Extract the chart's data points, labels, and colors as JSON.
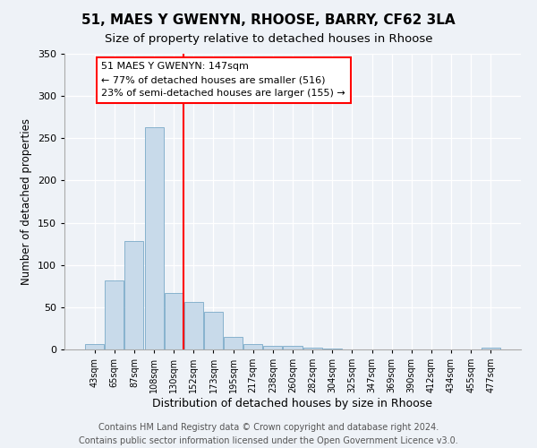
{
  "title": "51, MAES Y GWENYN, RHOOSE, BARRY, CF62 3LA",
  "subtitle": "Size of property relative to detached houses in Rhoose",
  "xlabel": "Distribution of detached houses by size in Rhoose",
  "ylabel": "Number of detached properties",
  "bin_labels": [
    "43sqm",
    "65sqm",
    "87sqm",
    "108sqm",
    "130sqm",
    "152sqm",
    "173sqm",
    "195sqm",
    "217sqm",
    "238sqm",
    "260sqm",
    "282sqm",
    "304sqm",
    "325sqm",
    "347sqm",
    "369sqm",
    "390sqm",
    "412sqm",
    "434sqm",
    "455sqm",
    "477sqm"
  ],
  "bar_heights": [
    6,
    82,
    128,
    263,
    67,
    56,
    45,
    15,
    6,
    4,
    4,
    2,
    1,
    0,
    0,
    0,
    0,
    0,
    0,
    0,
    2
  ],
  "bar_color": "#c8daea",
  "bar_edge_color": "#7aaac8",
  "vline_x_index": 4.5,
  "vline_color": "red",
  "annotation_box_text": "51 MAES Y GWENYN: 147sqm\n← 77% of detached houses are smaller (516)\n23% of semi-detached houses are larger (155) →",
  "annotation_box_color": "white",
  "annotation_box_edge_color": "red",
  "ylim": [
    0,
    350
  ],
  "yticks": [
    0,
    50,
    100,
    150,
    200,
    250,
    300,
    350
  ],
  "footer_text": "Contains HM Land Registry data © Crown copyright and database right 2024.\nContains public sector information licensed under the Open Government Licence v3.0.",
  "title_fontsize": 11,
  "subtitle_fontsize": 9.5,
  "bar_fontsize": 8,
  "ylabel_fontsize": 8.5,
  "xlabel_fontsize": 9,
  "footer_fontsize": 7,
  "background_color": "#eef2f7"
}
